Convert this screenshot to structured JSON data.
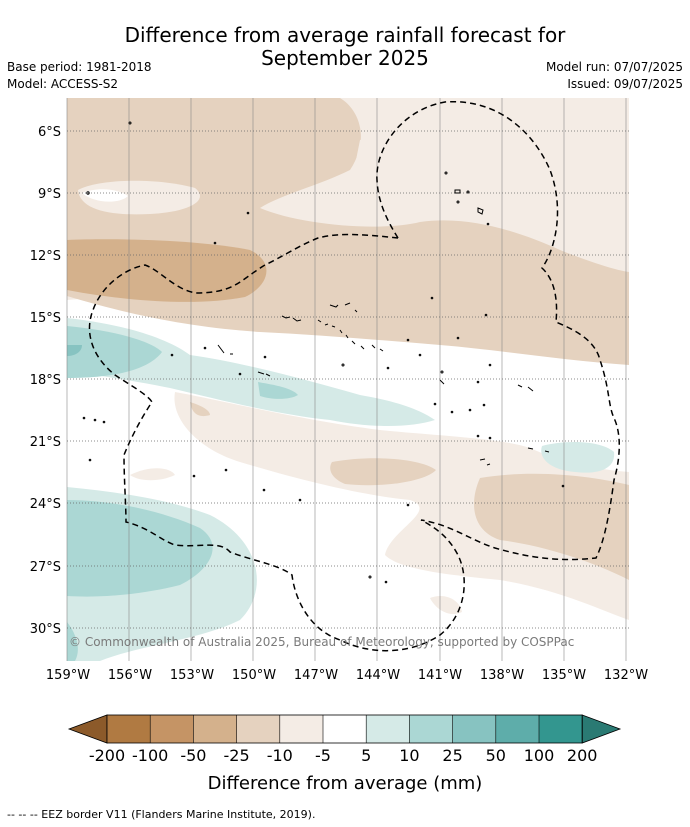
{
  "title_line1": "Difference from average rainfall forecast for",
  "title_line2": "September 2025",
  "base_period": "Base period: 1981-2018",
  "model": "Model: ACCESS-S2",
  "model_run": "Model run: 07/07/2025",
  "issued": "Issued: 09/07/2025",
  "copyright": "© Commonwealth of Australia 2025, Bureau of Meteorology, supported by COSPPac",
  "lat_labels": [
    "6°S",
    "9°S",
    "12°S",
    "15°S",
    "18°S",
    "21°S",
    "24°S",
    "27°S",
    "30°S"
  ],
  "lon_labels": [
    "159°W",
    "156°W",
    "153°W",
    "150°W",
    "147°W",
    "144°W",
    "141°W",
    "138°W",
    "135°W",
    "132°W"
  ],
  "colorbar": {
    "ticks": [
      "-200",
      "-100",
      "-50",
      "-25",
      "-10",
      "-5",
      "5",
      "10",
      "25",
      "50",
      "100",
      "200"
    ],
    "colors": [
      "#8c5a2a",
      "#b07a42",
      "#c59465",
      "#d4b18c",
      "#e5d2bf",
      "#f4ece5",
      "#ffffff",
      "#d5eae7",
      "#abd7d4",
      "#87c3c1",
      "#5eadaa",
      "#33968f",
      "#2a7a73"
    ],
    "title": "Difference from average (mm)"
  },
  "footnote": "--  --  -- EEZ border V11 (Flanders Marine Institute, 2019)."
}
